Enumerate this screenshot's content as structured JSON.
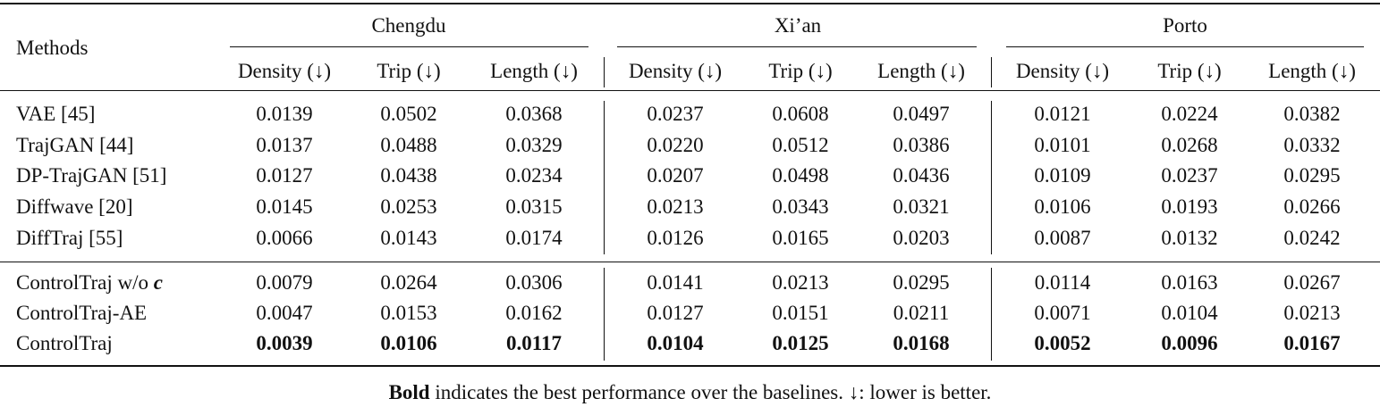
{
  "table": {
    "methods_header": "Methods",
    "groups": [
      "Chengdu",
      "Xi’an",
      "Porto"
    ],
    "columns": [
      "Density (↓)",
      "Trip (↓)",
      "Length (↓)"
    ],
    "sections": [
      [
        {
          "method": "VAE [45]",
          "values": [
            "0.0139",
            "0.0502",
            "0.0368",
            "0.0237",
            "0.0608",
            "0.0497",
            "0.0121",
            "0.0224",
            "0.0382"
          ]
        },
        {
          "method": "TrajGAN [44]",
          "values": [
            "0.0137",
            "0.0488",
            "0.0329",
            "0.0220",
            "0.0512",
            "0.0386",
            "0.0101",
            "0.0268",
            "0.0332"
          ]
        },
        {
          "method": "DP-TrajGAN [51]",
          "values": [
            "0.0127",
            "0.0438",
            "0.0234",
            "0.0207",
            "0.0498",
            "0.0436",
            "0.0109",
            "0.0237",
            "0.0295"
          ]
        },
        {
          "method": "Diffwave [20]",
          "values": [
            "0.0145",
            "0.0253",
            "0.0315",
            "0.0213",
            "0.0343",
            "0.0321",
            "0.0106",
            "0.0193",
            "0.0266"
          ]
        },
        {
          "method": "DiffTraj [55]",
          "values": [
            "0.0066",
            "0.0143",
            "0.0174",
            "0.0126",
            "0.0165",
            "0.0203",
            "0.0087",
            "0.0132",
            "0.0242"
          ]
        }
      ],
      [
        {
          "method": "ControlTraj w/o",
          "symbol": "c",
          "values": [
            "0.0079",
            "0.0264",
            "0.0306",
            "0.0141",
            "0.0213",
            "0.0295",
            "0.0114",
            "0.0163",
            "0.0267"
          ]
        },
        {
          "method": "ControlTraj-AE",
          "values": [
            "0.0047",
            "0.0153",
            "0.0162",
            "0.0127",
            "0.0151",
            "0.0211",
            "0.0071",
            "0.0104",
            "0.0213"
          ]
        },
        {
          "method": "ControlTraj",
          "bold": true,
          "values": [
            "0.0039",
            "0.0106",
            "0.0117",
            "0.0104",
            "0.0125",
            "0.0168",
            "0.0052",
            "0.0096",
            "0.0167"
          ]
        }
      ]
    ],
    "caption": {
      "bold": "Bold",
      "text": "indicates the best performance over the baselines. ↓: lower is better."
    }
  }
}
